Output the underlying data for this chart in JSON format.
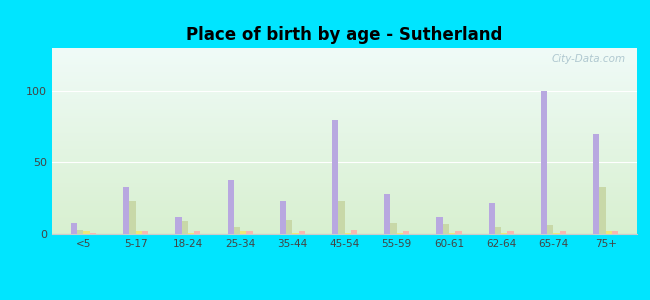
{
  "title": "Place of birth by age - Sutherland",
  "categories": [
    "<5",
    "5-17",
    "18-24",
    "25-34",
    "35-44",
    "45-54",
    "55-59",
    "60-61",
    "62-64",
    "65-74",
    "75+"
  ],
  "series": {
    "Born in state of residence": [
      8,
      33,
      12,
      38,
      23,
      80,
      28,
      12,
      22,
      100,
      70
    ],
    "Born in other state": [
      3,
      23,
      9,
      5,
      10,
      23,
      8,
      7,
      5,
      6,
      33
    ],
    "Native, outside of US": [
      2,
      2,
      1,
      2,
      1,
      1,
      1,
      1,
      1,
      1,
      2
    ],
    "Foreign-born": [
      1,
      2,
      2,
      2,
      2,
      3,
      2,
      2,
      2,
      2,
      2
    ]
  },
  "colors": {
    "Born in state of residence": "#b8a8e0",
    "Born in other state": "#c8d8a8",
    "Native, outside of US": "#f0e878",
    "Foreign-born": "#f8b8b0"
  },
  "legend_colors": {
    "Born in state of residence": "#c8b8e8",
    "Born in other state": "#d8e0b8",
    "Native, outside of US": "#f8f080",
    "Foreign-born": "#fcc8c0"
  },
  "ylim": [
    0,
    130
  ],
  "yticks": [
    0,
    50,
    100
  ],
  "bg_gradient_top": "#f0fbf8",
  "bg_gradient_bottom": "#d8f0d0",
  "outer_bg": "#00e5ff",
  "bar_width": 0.12,
  "watermark": "City-Data.com"
}
